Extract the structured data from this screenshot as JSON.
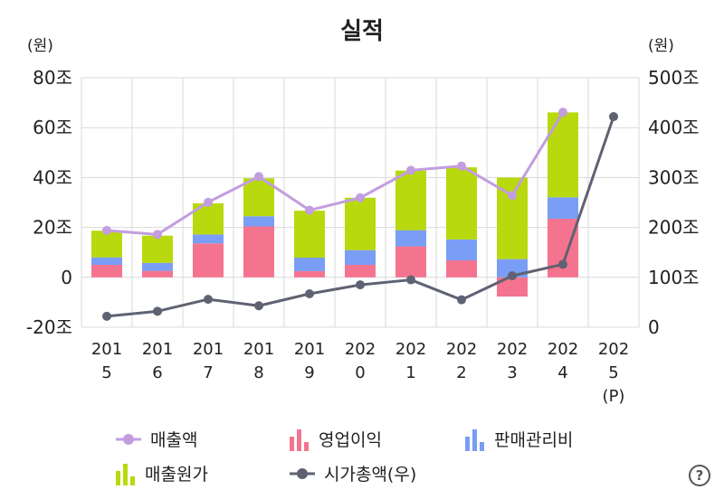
{
  "chart_data": {
    "type": "bar",
    "title": "실적",
    "left_unit": "(원)",
    "right_unit": "(원)",
    "stacked": true,
    "categories": [
      [
        "201",
        "5"
      ],
      [
        "201",
        "6"
      ],
      [
        "201",
        "7"
      ],
      [
        "201",
        "8"
      ],
      [
        "201",
        "9"
      ],
      [
        "202",
        "0"
      ],
      [
        "202",
        "1"
      ],
      [
        "202",
        "2"
      ],
      [
        "202",
        "3"
      ],
      [
        "202",
        "4"
      ],
      [
        "202",
        "5",
        "(P)"
      ]
    ],
    "left_axis": {
      "ylim": [
        -20,
        80
      ],
      "ticks": [
        -20,
        0,
        20,
        40,
        60,
        80
      ],
      "tick_labels": [
        "-20조",
        "0",
        "20조",
        "40조",
        "60조",
        "80조"
      ]
    },
    "right_axis": {
      "ylim": [
        0,
        500
      ],
      "ticks": [
        0,
        100,
        200,
        300,
        400,
        500
      ],
      "tick_labels": [
        "0",
        "100조",
        "200조",
        "300조",
        "400조",
        "500조"
      ]
    },
    "series": [
      {
        "name": "영업이익",
        "kind": "bar",
        "axis": "left",
        "color": "#f4748f",
        "values": [
          5.0,
          2.6,
          13.6,
          20.4,
          2.5,
          5.0,
          12.4,
          6.8,
          -7.7,
          23.5,
          null
        ]
      },
      {
        "name": "판매관리비",
        "kind": "bar",
        "axis": "left",
        "color": "#7a9df5",
        "values": [
          3.0,
          3.2,
          3.6,
          4.1,
          5.4,
          5.9,
          6.5,
          8.4,
          7.3,
          8.6,
          null
        ]
      },
      {
        "name": "매출원가",
        "kind": "bar",
        "axis": "left",
        "color": "#b8d90d",
        "values": [
          10.7,
          10.9,
          12.5,
          15.2,
          18.8,
          21.0,
          23.9,
          28.9,
          32.7,
          34.0,
          null
        ]
      },
      {
        "name": "매출액",
        "kind": "line",
        "axis": "left",
        "color": "#c39de0",
        "values": [
          18.8,
          17.2,
          30.1,
          40.4,
          26.9,
          31.9,
          42.9,
          44.6,
          32.8,
          66.2,
          null
        ]
      },
      {
        "name": "시가총액(우)",
        "kind": "line",
        "axis": "right",
        "color": "#5f6272",
        "values": [
          22,
          32,
          56,
          43,
          67,
          85,
          95,
          55,
          103,
          126,
          422
        ]
      }
    ],
    "legend": [
      {
        "label": "매출액",
        "symbol": "line-dot",
        "color": "#c39de0"
      },
      {
        "label": "영업이익",
        "symbol": "bars",
        "color": "#f4748f"
      },
      {
        "label": "판매관리비",
        "symbol": "bars",
        "color": "#7a9df5"
      },
      {
        "label": "매출원가",
        "symbol": "bars",
        "color": "#b8d90d"
      },
      {
        "label": "시가총액(우)",
        "symbol": "line-dot",
        "color": "#5f6272"
      }
    ]
  },
  "help_icon": "question-circle-icon",
  "help_label": "?"
}
